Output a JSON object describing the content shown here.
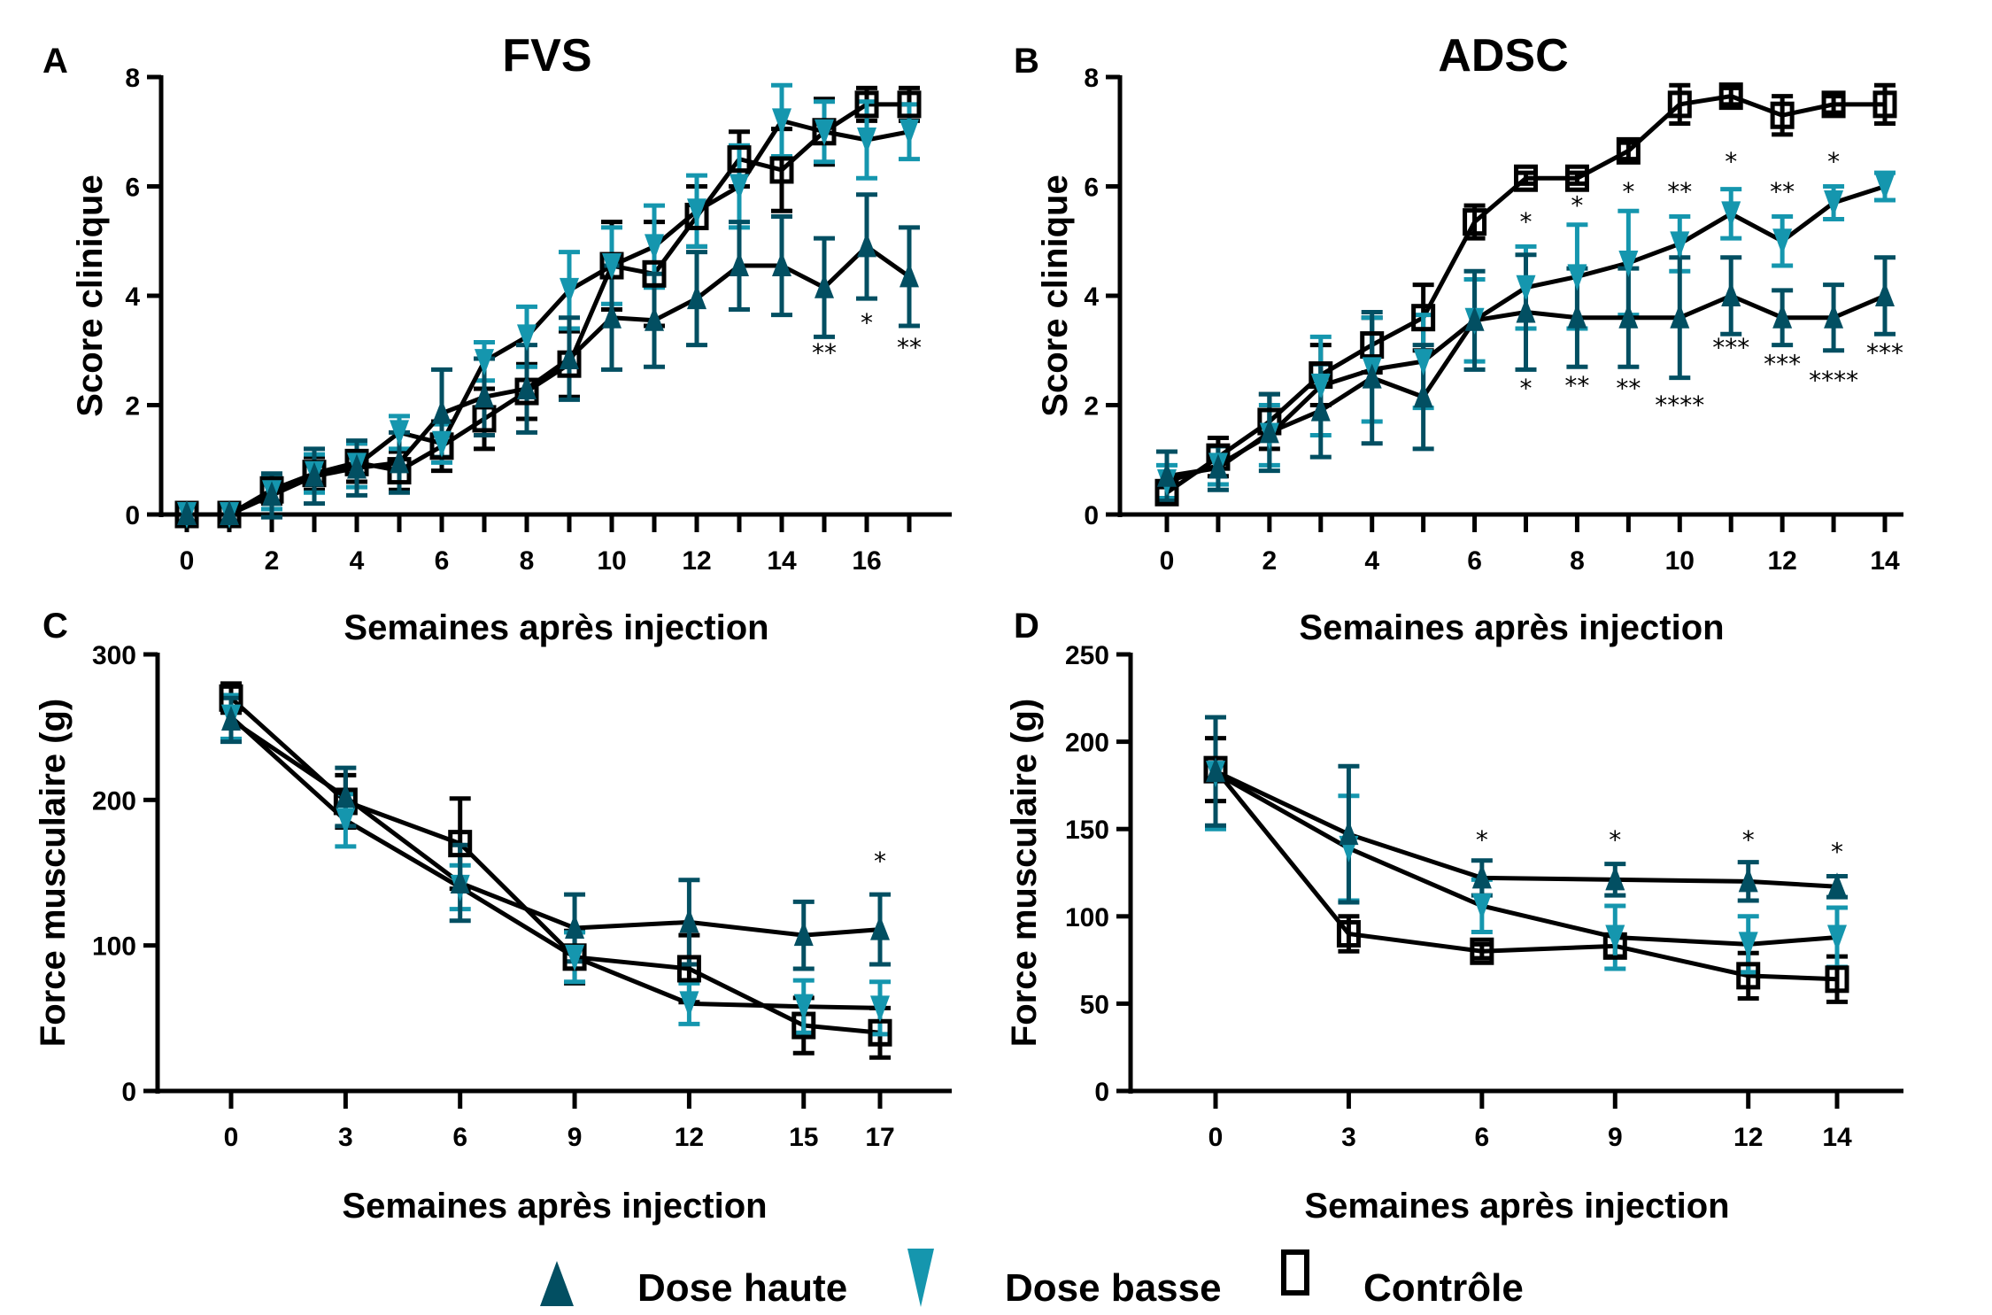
{
  "legend": {
    "items": [
      {
        "label": "Dose haute",
        "marker": "triangle-up",
        "color": "#024f62"
      },
      {
        "label": "Dose basse",
        "marker": "triangle-down",
        "color": "#1596ae"
      },
      {
        "label": "Contrôle",
        "marker": "square-open",
        "color": "#000000"
      }
    ]
  },
  "chart_data": [
    {
      "panel": "A",
      "type": "line",
      "title": "FVS",
      "xlabel": "Semaines après injection",
      "ylabel": "Score clinique",
      "xlim": [
        -0.7,
        17.6
      ],
      "ylim": [
        0,
        8
      ],
      "xticks": [
        0,
        2,
        4,
        6,
        8,
        10,
        12,
        14,
        16
      ],
      "xminor": [
        1,
        3,
        5,
        7,
        9,
        11,
        13,
        15,
        17
      ],
      "yticks": [
        0,
        2,
        4,
        6,
        8
      ],
      "x": [
        0,
        1,
        2,
        3,
        4,
        5,
        6,
        7,
        8,
        9,
        10,
        11,
        12,
        13,
        14,
        15,
        16,
        17
      ],
      "series": [
        {
          "name": "Dose haute",
          "values": [
            0,
            0,
            0.35,
            0.7,
            0.85,
            0.95,
            1.85,
            2.15,
            2.3,
            2.85,
            3.6,
            3.55,
            3.95,
            4.55,
            4.55,
            4.15,
            4.9,
            4.35
          ],
          "err": [
            0,
            0,
            0.4,
            0.5,
            0.5,
            0.55,
            0.8,
            0.7,
            0.8,
            0.75,
            0.95,
            0.85,
            0.85,
            0.8,
            0.9,
            0.9,
            0.95,
            0.9
          ]
        },
        {
          "name": "Dose basse",
          "values": [
            0,
            0,
            0.4,
            0.75,
            0.9,
            1.5,
            1.3,
            2.8,
            3.25,
            4.1,
            4.55,
            4.9,
            5.55,
            6.0,
            7.2,
            7.0,
            6.85,
            7.0
          ],
          "err": [
            0,
            0,
            0.3,
            0.35,
            0.4,
            0.3,
            0.35,
            0.35,
            0.55,
            0.7,
            0.7,
            0.75,
            0.65,
            0.75,
            0.65,
            0.55,
            0.7,
            0.5
          ]
        },
        {
          "name": "Contrôle",
          "values": [
            0,
            0,
            0.45,
            0.75,
            0.95,
            0.8,
            1.25,
            1.75,
            2.25,
            2.75,
            4.55,
            4.4,
            5.45,
            6.5,
            6.3,
            7.0,
            7.5,
            7.5
          ],
          "err": [
            0,
            0,
            0.25,
            0.3,
            0.35,
            0.35,
            0.45,
            0.55,
            0.5,
            0.6,
            0.8,
            0.95,
            0.55,
            0.5,
            0.75,
            0.6,
            0.3,
            0.3
          ]
        }
      ],
      "annotations": [
        {
          "x": 15,
          "text": "**",
          "y": 2.8
        },
        {
          "x": 16,
          "text": "*",
          "y": 3.35
        },
        {
          "x": 17,
          "text": "**",
          "y": 2.9
        }
      ]
    },
    {
      "panel": "B",
      "type": "line",
      "title": "ADSC",
      "xlabel": "Semaines après injection",
      "ylabel": "Score clinique",
      "xlim": [
        -0.7,
        14.4
      ],
      "ylim": [
        0,
        8
      ],
      "xticks": [
        0,
        2,
        4,
        6,
        8,
        10,
        12,
        14
      ],
      "xminor": [
        1,
        3,
        5,
        7,
        9,
        11,
        13
      ],
      "yticks": [
        0,
        2,
        4,
        6,
        8
      ],
      "x": [
        0,
        1,
        2,
        3,
        4,
        5,
        6,
        7,
        8,
        9,
        10,
        11,
        12,
        13,
        14
      ],
      "series": [
        {
          "name": "Dose haute",
          "values": [
            0.7,
            0.85,
            1.5,
            1.9,
            2.5,
            2.15,
            3.55,
            3.7,
            3.6,
            3.6,
            3.6,
            4.0,
            3.6,
            3.6,
            4.0
          ],
          "err": [
            0.45,
            0.4,
            0.7,
            0.85,
            1.2,
            0.95,
            0.9,
            1.05,
            0.9,
            0.9,
            1.1,
            0.7,
            0.5,
            0.6,
            0.7
          ]
        },
        {
          "name": "Dose basse",
          "values": [
            0.6,
            0.9,
            1.45,
            2.35,
            2.65,
            2.8,
            3.55,
            4.15,
            4.35,
            4.6,
            4.95,
            5.5,
            5.0,
            5.7,
            6.0
          ],
          "err": [
            0.3,
            0.35,
            0.55,
            0.9,
            0.95,
            0.85,
            0.75,
            0.75,
            0.95,
            0.95,
            0.5,
            0.45,
            0.45,
            0.3,
            0.25
          ]
        },
        {
          "name": "Contrôle",
          "values": [
            0.4,
            1.05,
            1.7,
            2.55,
            3.1,
            3.6,
            5.35,
            6.15,
            6.15,
            6.65,
            7.5,
            7.65,
            7.3,
            7.5,
            7.5
          ],
          "err": [
            0.1,
            0.35,
            0.5,
            0.55,
            0.5,
            0.6,
            0.3,
            0.1,
            0.1,
            0.15,
            0.35,
            0.15,
            0.35,
            0.15,
            0.35
          ]
        }
      ],
      "annotations": [
        {
          "x": 7,
          "text": "*",
          "y": 5.2
        },
        {
          "x": 8,
          "text": "*",
          "y": 5.5
        },
        {
          "x": 9,
          "text": "*",
          "y": 5.75
        },
        {
          "x": 10,
          "text": "**",
          "y": 5.75
        },
        {
          "x": 11,
          "text": "*",
          "y": 6.3
        },
        {
          "x": 12,
          "text": "**",
          "y": 5.75
        },
        {
          "x": 13,
          "text": "*",
          "y": 6.3
        },
        {
          "x": 7,
          "text": "*",
          "y": 2.15
        },
        {
          "x": 8,
          "text": "**",
          "y": 2.2
        },
        {
          "x": 9,
          "text": "**",
          "y": 2.15
        },
        {
          "x": 10,
          "text": "****",
          "y": 1.85
        },
        {
          "x": 11,
          "text": "***",
          "y": 2.9
        },
        {
          "x": 12,
          "text": "***",
          "y": 2.6
        },
        {
          "x": 13,
          "text": "****",
          "y": 2.3
        },
        {
          "x": 14,
          "text": "***",
          "y": 2.8
        }
      ]
    },
    {
      "panel": "C",
      "type": "line",
      "title": "",
      "xlabel": "Semaines après injection",
      "ylabel": "Force musculaire (g)",
      "xlim": [
        -2,
        19
      ],
      "ylim": [
        0,
        300
      ],
      "xticks": [
        0,
        3,
        6,
        9,
        12,
        15,
        17
      ],
      "xminor": [],
      "yticks": [
        0,
        100,
        200,
        300
      ],
      "x": [
        0,
        3,
        6,
        9,
        12,
        15,
        17
      ],
      "series": [
        {
          "name": "Dose haute",
          "values": [
            255,
            202,
            143,
            112,
            116,
            107,
            111
          ],
          "err": [
            15,
            20,
            26,
            23,
            29,
            23,
            24
          ]
        },
        {
          "name": "Dose basse",
          "values": [
            257,
            186,
            140,
            92,
            60,
            58,
            57
          ],
          "err": [
            15,
            18,
            15,
            17,
            14,
            18,
            18
          ]
        },
        {
          "name": "Contrôle",
          "values": [
            270,
            199,
            170,
            92,
            84,
            45,
            40
          ],
          "err": [
            10,
            18,
            31,
            18,
            23,
            19,
            17
          ]
        }
      ],
      "annotations": [
        {
          "x": 17,
          "text": "*",
          "y": 152
        }
      ]
    },
    {
      "panel": "D",
      "type": "line",
      "title": "",
      "xlabel": "Semaines après injection",
      "ylabel": "Force musculaire (g)",
      "xlim": [
        -2,
        16
      ],
      "ylim": [
        0,
        250
      ],
      "xticks": [
        0,
        3,
        6,
        9,
        12,
        14
      ],
      "xminor": [],
      "yticks": [
        0,
        50,
        100,
        150,
        200,
        250
      ],
      "x": [
        0,
        3,
        6,
        9,
        12,
        14
      ],
      "series": [
        {
          "name": "Dose haute",
          "values": [
            183,
            147,
            122,
            121,
            120,
            117
          ],
          "err": [
            31,
            39,
            10,
            9,
            11,
            6
          ]
        },
        {
          "name": "Dose basse",
          "values": [
            182,
            139,
            106,
            88,
            84,
            88
          ],
          "err": [
            32,
            30,
            15,
            18,
            16,
            17
          ]
        },
        {
          "name": "Contrôle",
          "values": [
            184,
            90,
            80,
            83,
            66,
            64
          ],
          "err": [
            18,
            10,
            4,
            6,
            13,
            13
          ]
        }
      ],
      "annotations": [
        {
          "x": 6,
          "text": "*",
          "y": 139
        },
        {
          "x": 9,
          "text": "*",
          "y": 139
        },
        {
          "x": 12,
          "text": "*",
          "y": 139
        },
        {
          "x": 14,
          "text": "*",
          "y": 132
        }
      ]
    }
  ]
}
